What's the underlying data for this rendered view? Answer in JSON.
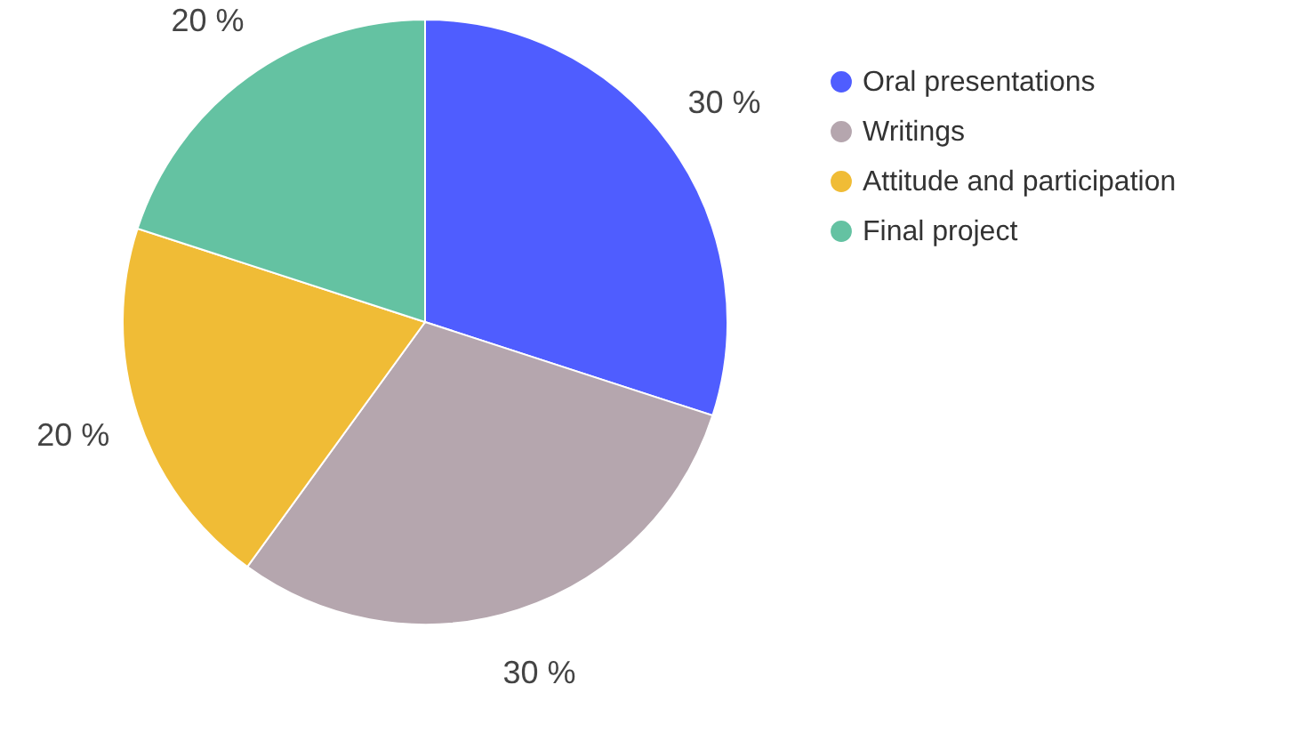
{
  "chart_data": {
    "type": "pie",
    "categories": [
      "Oral presentations",
      "Writings",
      "Attitude and participation",
      "Final project"
    ],
    "values": [
      30,
      30,
      20,
      20
    ],
    "colors": [
      "#4f5dff",
      "#b5a6ae",
      "#f0bc36",
      "#64c2a2"
    ],
    "value_labels": [
      "30 %",
      "30 %",
      "20 %",
      "20 %"
    ],
    "legend": "right"
  }
}
